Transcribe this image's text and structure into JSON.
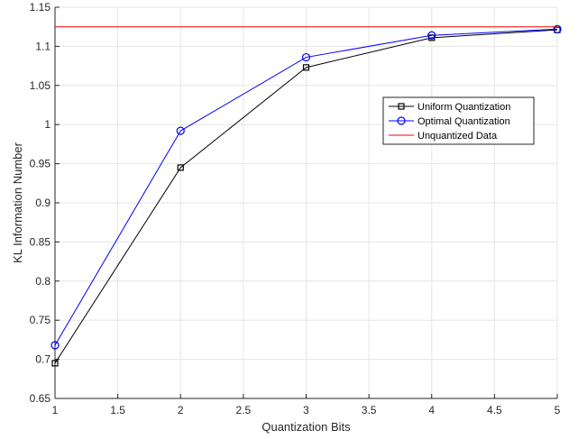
{
  "chart_data": {
    "type": "line",
    "title": "",
    "xlabel": "Quantization Bits",
    "ylabel": "KL Information Number",
    "xlim": [
      1,
      5
    ],
    "ylim": [
      0.65,
      1.15
    ],
    "grid": true,
    "legend_position": "center-right",
    "x_ticks": [
      "1",
      "1.5",
      "2",
      "2.5",
      "3",
      "3.5",
      "4",
      "4.5",
      "5"
    ],
    "y_ticks": [
      "0.65",
      "0.7",
      "0.75",
      "0.8",
      "0.85",
      "0.9",
      "0.95",
      "1",
      "1.05",
      "1.1",
      "1.15"
    ],
    "series": [
      {
        "name": "Uniform Quantization",
        "color": "#000000",
        "marker": "square",
        "x": [
          1,
          2,
          3,
          4,
          5
        ],
        "values": [
          0.695,
          0.945,
          1.073,
          1.111,
          1.121
        ]
      },
      {
        "name": "Optimal Quantization",
        "color": "#0000ff",
        "marker": "circle",
        "x": [
          1,
          2,
          3,
          4,
          5
        ],
        "values": [
          0.718,
          0.992,
          1.086,
          1.114,
          1.122
        ]
      },
      {
        "name": "Unquantized Data",
        "color": "#ff0000",
        "marker": "none",
        "x": [
          1,
          5
        ],
        "values": [
          1.125,
          1.125
        ]
      }
    ]
  }
}
